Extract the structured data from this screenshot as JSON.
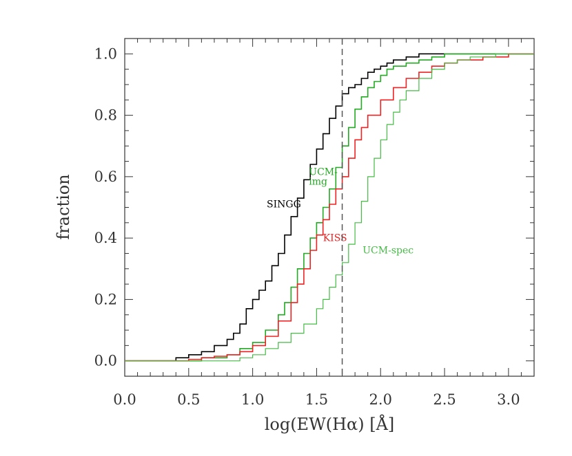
{
  "chart_data": {
    "type": "line",
    "title": "",
    "xlabel": "log(EW(Hα) [Å]",
    "ylabel": "fraction",
    "xlim": [
      0.0,
      3.2
    ],
    "ylim": [
      -0.05,
      1.05
    ],
    "x_ticks": [
      "0.0",
      "0.5",
      "1.0",
      "1.5",
      "2.0",
      "2.5",
      "3.0"
    ],
    "y_ticks": [
      "0.0",
      "0.2",
      "0.4",
      "0.6",
      "0.8",
      "1.0"
    ],
    "reference_line": {
      "x": 1.7,
      "style": "dashed",
      "color": "#555555"
    },
    "grid": false,
    "series": [
      {
        "name": "SINGG",
        "color": "#000000",
        "label_at": [
          1.22,
          0.51
        ],
        "x": [
          0.33,
          0.4,
          0.5,
          0.6,
          0.7,
          0.8,
          0.85,
          0.9,
          0.95,
          1.0,
          1.05,
          1.1,
          1.15,
          1.2,
          1.25,
          1.3,
          1.35,
          1.4,
          1.45,
          1.5,
          1.55,
          1.6,
          1.65,
          1.7,
          1.75,
          1.8,
          1.85,
          1.9,
          1.95,
          2.0,
          2.05,
          2.1,
          2.2,
          2.3,
          2.4
        ],
        "y": [
          0.0,
          0.01,
          0.02,
          0.03,
          0.05,
          0.07,
          0.09,
          0.12,
          0.17,
          0.2,
          0.23,
          0.26,
          0.31,
          0.35,
          0.41,
          0.47,
          0.53,
          0.59,
          0.64,
          0.69,
          0.74,
          0.79,
          0.83,
          0.87,
          0.89,
          0.9,
          0.92,
          0.94,
          0.95,
          0.96,
          0.97,
          0.98,
          0.99,
          1.0,
          1.0
        ]
      },
      {
        "name": "UCM-img",
        "color": "#22aa22",
        "label_at": [
          1.47,
          0.62
        ],
        "x": [
          0.5,
          0.6,
          0.7,
          0.8,
          0.9,
          1.0,
          1.1,
          1.2,
          1.25,
          1.3,
          1.35,
          1.4,
          1.45,
          1.5,
          1.55,
          1.6,
          1.65,
          1.7,
          1.75,
          1.8,
          1.85,
          1.9,
          1.95,
          2.0,
          2.05,
          2.1,
          2.2,
          2.3,
          2.4,
          2.5,
          2.6
        ],
        "y": [
          0.0,
          0.01,
          0.01,
          0.02,
          0.04,
          0.06,
          0.1,
          0.15,
          0.19,
          0.24,
          0.3,
          0.35,
          0.4,
          0.45,
          0.5,
          0.56,
          0.63,
          0.7,
          0.76,
          0.82,
          0.86,
          0.89,
          0.91,
          0.93,
          0.95,
          0.96,
          0.97,
          0.98,
          0.99,
          1.0,
          1.0
        ]
      },
      {
        "name": "KISS",
        "color": "#ee2222",
        "label_at": [
          1.7,
          0.4
        ],
        "x": [
          0.4,
          0.5,
          0.6,
          0.7,
          0.8,
          0.9,
          1.0,
          1.1,
          1.2,
          1.3,
          1.35,
          1.4,
          1.45,
          1.5,
          1.55,
          1.6,
          1.65,
          1.7,
          1.75,
          1.8,
          1.85,
          1.9,
          2.0,
          2.1,
          2.2,
          2.3,
          2.4,
          2.5,
          2.6,
          2.8,
          3.0
        ],
        "y": [
          0.0,
          0.005,
          0.01,
          0.015,
          0.02,
          0.03,
          0.05,
          0.08,
          0.13,
          0.19,
          0.25,
          0.3,
          0.36,
          0.41,
          0.46,
          0.51,
          0.56,
          0.6,
          0.66,
          0.72,
          0.76,
          0.8,
          0.85,
          0.89,
          0.92,
          0.94,
          0.96,
          0.97,
          0.98,
          0.99,
          1.0
        ]
      },
      {
        "name": "UCM-spec",
        "color": "#44bb44",
        "label_at": [
          1.85,
          0.36
        ],
        "x": [
          0.8,
          0.9,
          1.0,
          1.1,
          1.2,
          1.3,
          1.4,
          1.5,
          1.55,
          1.6,
          1.65,
          1.7,
          1.75,
          1.8,
          1.85,
          1.9,
          1.95,
          2.0,
          2.05,
          2.1,
          2.15,
          2.2,
          2.3,
          2.4,
          2.5,
          2.6,
          2.7,
          2.8,
          2.9,
          3.0
        ],
        "y": [
          0.0,
          0.01,
          0.02,
          0.04,
          0.06,
          0.09,
          0.12,
          0.17,
          0.2,
          0.24,
          0.28,
          0.32,
          0.38,
          0.45,
          0.52,
          0.6,
          0.66,
          0.72,
          0.77,
          0.81,
          0.85,
          0.88,
          0.92,
          0.95,
          0.97,
          0.98,
          0.99,
          0.99,
          1.0,
          1.0
        ]
      }
    ]
  }
}
